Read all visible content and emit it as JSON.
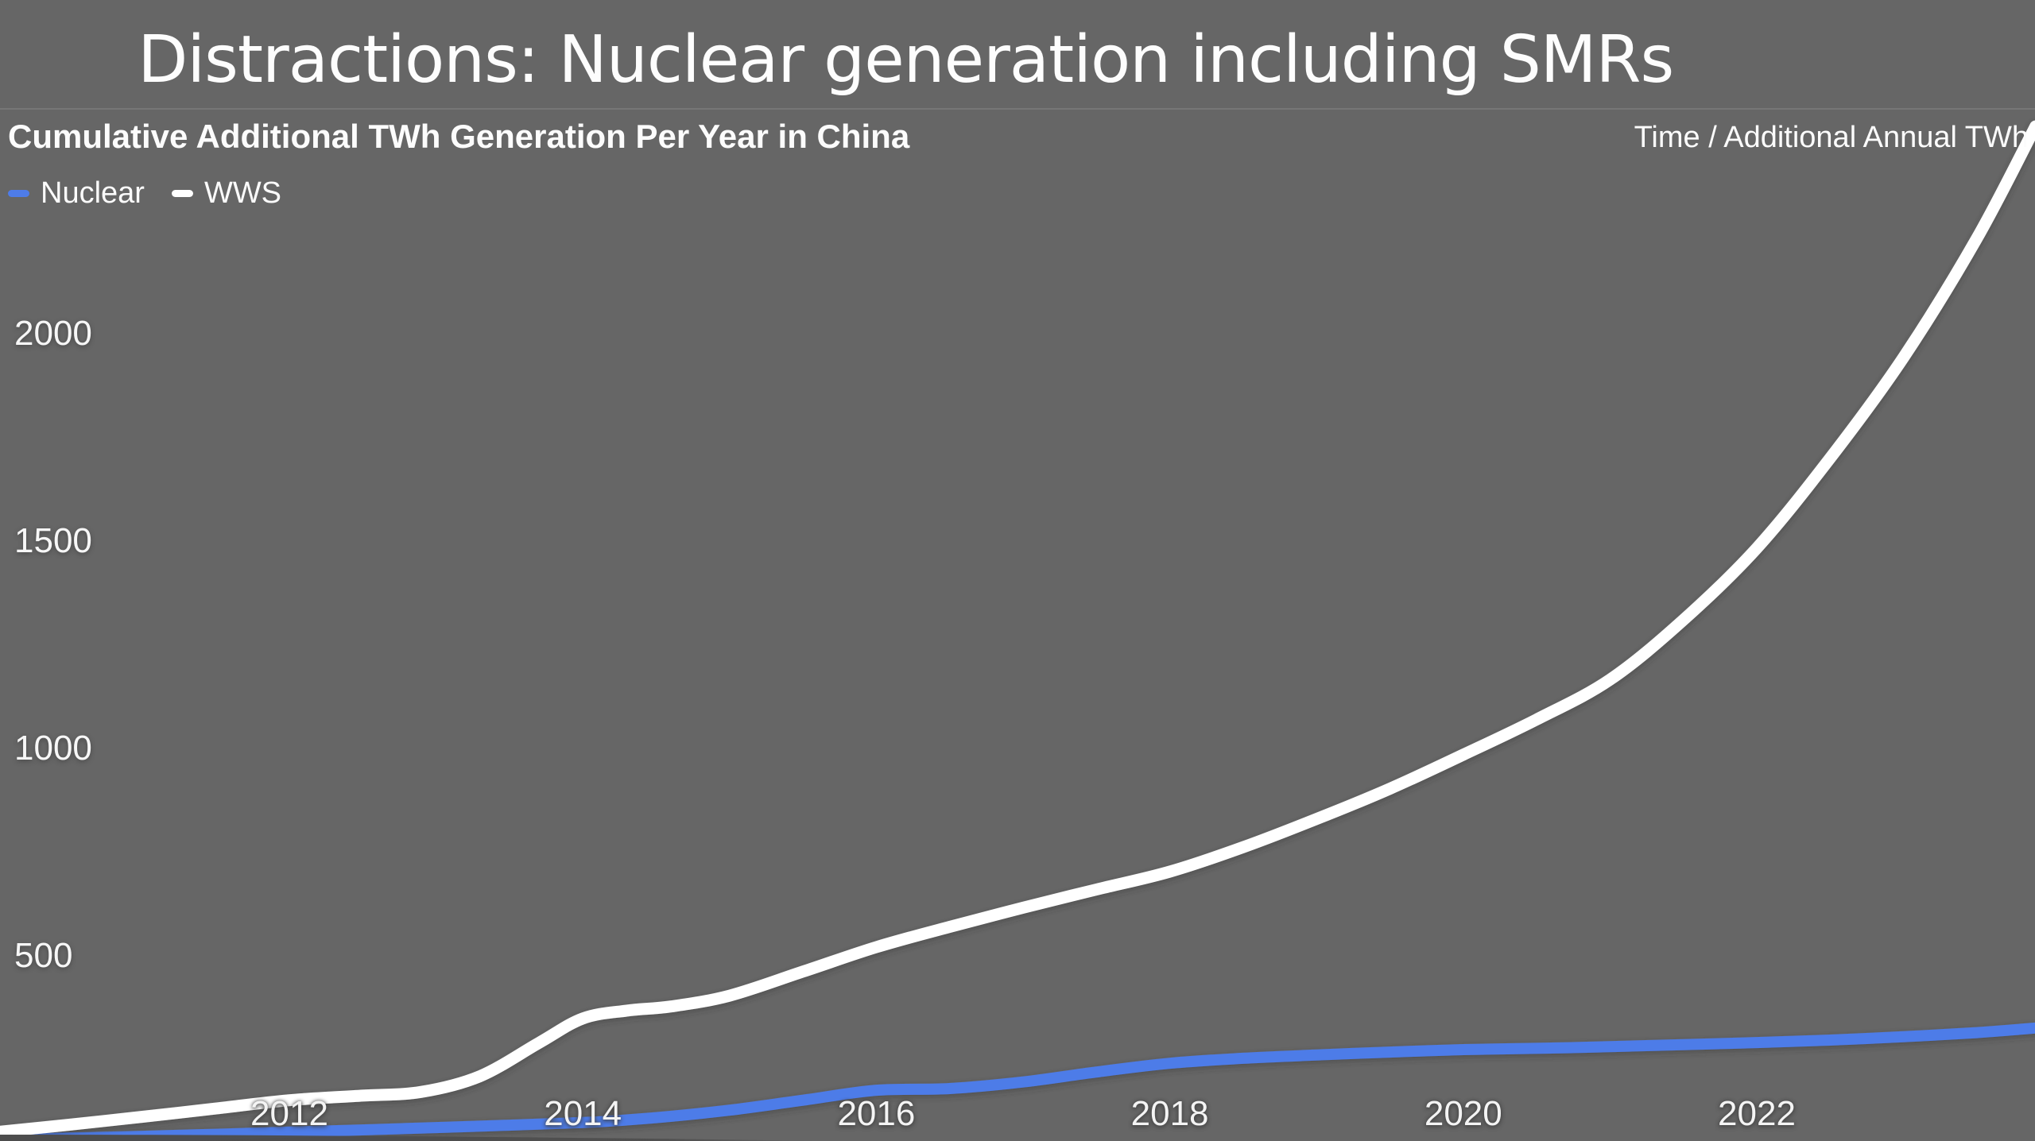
{
  "slide": {
    "title": "Distractions: Nuclear generation including SMRs",
    "chart_title": "Cumulative Additional TWh Generation Per Year in China",
    "axis_note": "Time / Additional Annual TWh"
  },
  "colors": {
    "background": "#666666",
    "nuclear_line": "#4e7ce8",
    "wws_line": "#ffffff",
    "text": "#fcfcfc",
    "bottom_edge": "#4d4d4d"
  },
  "chart_data": {
    "type": "line",
    "title": "Cumulative Additional TWh Generation Per Year in China",
    "xlabel": "Time",
    "ylabel": "Additional Annual TWh",
    "axis_note": "Time / Additional Annual TWh",
    "grid": false,
    "legend_position": "top-left",
    "x_range": [
      2010,
      2023.9
    ],
    "y_ticks": [
      500,
      1000,
      1500,
      2000
    ],
    "x_ticks": [
      2012,
      2014,
      2016,
      2018,
      2020,
      2022
    ],
    "series": [
      {
        "name": "Nuclear",
        "color": "#4e7ce8",
        "x": [
          2010,
          2011,
          2012,
          2013,
          2014,
          2014.5,
          2015,
          2015.5,
          2016,
          2016.5,
          2017,
          2017.5,
          2018,
          2018.5,
          2019,
          2019.5,
          2020,
          2020.5,
          2021,
          2021.5,
          2022,
          2022.5,
          2023,
          2023.5,
          2023.9
        ],
        "values": [
          57,
          65,
          75,
          86,
          98,
          110,
          128,
          152,
          176,
          180,
          196,
          220,
          241,
          253,
          261,
          268,
          274,
          277,
          281,
          286,
          291,
          297,
          305,
          315,
          326
        ]
      },
      {
        "name": "WWS",
        "color": "#ffffff",
        "x": [
          2010,
          2010.5,
          2011,
          2011.5,
          2012,
          2012.5,
          2012.9,
          2013.3,
          2013.7,
          2014,
          2014.3,
          2014.6,
          2015,
          2015.5,
          2016,
          2016.5,
          2017,
          2017.5,
          2018,
          2018.5,
          2019,
          2019.5,
          2020,
          2020.5,
          2021,
          2021.5,
          2022,
          2022.5,
          2023,
          2023.5,
          2023.9
        ],
        "values": [
          75,
          93,
          112,
          132,
          152,
          163,
          172,
          210,
          290,
          349,
          368,
          378,
          404,
          462,
          521,
          570,
          616,
          660,
          703,
          762,
          830,
          903,
          985,
          1070,
          1166,
          1310,
          1483,
          1700,
          1943,
          2230,
          2500
        ]
      }
    ]
  }
}
